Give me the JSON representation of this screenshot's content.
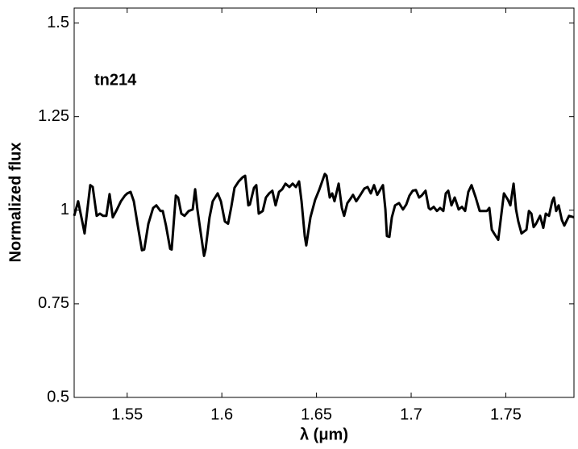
{
  "chart_data": {
    "type": "line",
    "annotation": "tn214",
    "xlabel": "λ (μm)",
    "ylabel": "Normalized flux",
    "color": "#000000",
    "xlim": [
      1.522,
      1.786
    ],
    "ylim": [
      0.5,
      1.54
    ],
    "xticks": [
      1.55,
      1.6,
      1.65,
      1.7,
      1.75
    ],
    "yticks": [
      0.5,
      0.75,
      1,
      1.25,
      1.5
    ],
    "x": [
      1.522,
      1.5241,
      1.5267,
      1.5275,
      1.5305,
      1.5318,
      1.5339,
      1.5356,
      1.5373,
      1.539,
      1.5407,
      1.5424,
      1.5446,
      1.5467,
      1.5488,
      1.5501,
      1.5518,
      1.5535,
      1.5556,
      1.5578,
      1.559,
      1.5612,
      1.5637,
      1.5654,
      1.5676,
      1.5688,
      1.5705,
      1.5727,
      1.5735,
      1.5757,
      1.5769,
      1.5786,
      1.5803,
      1.5825,
      1.5846,
      1.5859,
      1.5871,
      1.5889,
      1.5906,
      1.5914,
      1.5935,
      1.5952,
      1.5978,
      1.5995,
      1.6016,
      1.6033,
      1.605,
      1.6067,
      1.6089,
      1.611,
      1.6123,
      1.614,
      1.6148,
      1.617,
      1.6182,
      1.6195,
      1.6216,
      1.6233,
      1.625,
      1.6267,
      1.6284,
      1.6302,
      1.6319,
      1.6336,
      1.6357,
      1.6374,
      1.6391,
      1.6408,
      1.6421,
      1.6438,
      1.6446,
      1.6468,
      1.6493,
      1.6514,
      1.6544,
      1.6553,
      1.657,
      1.6583,
      1.6595,
      1.6617,
      1.6634,
      1.6646,
      1.6663,
      1.6676,
      1.6693,
      1.671,
      1.6732,
      1.6753,
      1.677,
      1.6787,
      1.6804,
      1.6821,
      1.6838,
      1.6851,
      1.6864,
      1.6872,
      1.6885,
      1.6898,
      1.6915,
      1.6936,
      1.6957,
      1.6974,
      1.6991,
      1.7008,
      1.7025,
      1.7042,
      1.7055,
      1.7076,
      1.7093,
      1.7102,
      1.7119,
      1.7136,
      1.7153,
      1.717,
      1.7183,
      1.7196,
      1.7213,
      1.723,
      1.7251,
      1.7268,
      1.7285,
      1.7302,
      1.7319,
      1.7341,
      1.7362,
      1.7383,
      1.74,
      1.7413,
      1.7426,
      1.7438,
      1.746,
      1.7477,
      1.749,
      1.7511,
      1.7524,
      1.7541,
      1.7554,
      1.7566,
      1.7583,
      1.7609,
      1.7622,
      1.7635,
      1.7647,
      1.766,
      1.7681,
      1.7698,
      1.7711,
      1.7728,
      1.7745,
      1.7754,
      1.7766,
      1.7779,
      1.7796,
      1.7809,
      1.7834,
      1.786
    ],
    "values": [
      0.985,
      1.024,
      0.959,
      0.938,
      1.067,
      1.062,
      0.985,
      0.991,
      0.985,
      0.985,
      1.043,
      0.981,
      1.002,
      1.024,
      1.039,
      1.045,
      1.049,
      1.024,
      0.959,
      0.893,
      0.895,
      0.964,
      1.006,
      1.013,
      0.998,
      0.998,
      0.959,
      0.897,
      0.895,
      1.039,
      1.034,
      0.991,
      0.985,
      0.998,
      1.002,
      1.056,
      1.002,
      0.938,
      0.878,
      0.895,
      0.981,
      1.024,
      1.045,
      1.024,
      0.97,
      0.964,
      1.009,
      1.06,
      1.077,
      1.088,
      1.092,
      1.013,
      1.015,
      1.06,
      1.067,
      0.991,
      0.998,
      1.034,
      1.045,
      1.052,
      1.013,
      1.049,
      1.056,
      1.071,
      1.062,
      1.071,
      1.062,
      1.077,
      1.024,
      0.931,
      0.906,
      0.981,
      1.028,
      1.054,
      1.097,
      1.092,
      1.034,
      1.045,
      1.024,
      1.071,
      1.006,
      0.985,
      1.019,
      1.028,
      1.041,
      1.024,
      1.041,
      1.058,
      1.062,
      1.045,
      1.067,
      1.041,
      1.056,
      1.067,
      1.002,
      0.931,
      0.929,
      0.981,
      1.013,
      1.019,
      1.002,
      1.015,
      1.039,
      1.052,
      1.054,
      1.034,
      1.039,
      1.052,
      1.006,
      1.002,
      1.009,
      0.998,
      1.006,
      0.998,
      1.045,
      1.052,
      1.013,
      1.034,
      1.002,
      1.009,
      0.998,
      1.049,
      1.067,
      1.034,
      0.998,
      0.998,
      0.998,
      1.006,
      0.948,
      0.938,
      0.921,
      0.991,
      1.045,
      1.028,
      1.013,
      1.071,
      1.002,
      0.97,
      0.938,
      0.948,
      0.998,
      0.991,
      0.955,
      0.964,
      0.985,
      0.953,
      0.991,
      0.985,
      1.024,
      1.034,
      0.998,
      1.013,
      0.974,
      0.959,
      0.985,
      0.981
    ]
  }
}
